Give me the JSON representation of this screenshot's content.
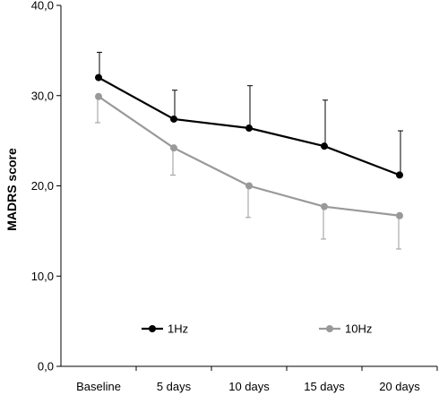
{
  "chart_data": {
    "type": "line",
    "title": "",
    "xlabel": "",
    "ylabel": "MADRS score",
    "categories": [
      "Baseline",
      "5 days",
      "10 days",
      "15 days",
      "20 days"
    ],
    "ylim": [
      0,
      40
    ],
    "yticks": [
      0,
      10,
      20,
      30,
      40
    ],
    "ytick_labels": [
      "0,0",
      "10,0",
      "20,0",
      "30,0",
      "40,0"
    ],
    "grid": false,
    "legend_position": "bottom",
    "series": [
      {
        "name": "1Hz",
        "color": "#000000",
        "values": [
          32.0,
          27.4,
          26.4,
          24.4,
          21.2
        ],
        "error": [
          2.8,
          3.2,
          4.7,
          5.1,
          4.9
        ]
      },
      {
        "name": "10Hz",
        "color": "#999999",
        "values": [
          29.9,
          24.2,
          20.0,
          17.7,
          16.7
        ],
        "error": [
          2.9,
          3.0,
          3.5,
          3.6,
          3.7
        ]
      }
    ]
  }
}
